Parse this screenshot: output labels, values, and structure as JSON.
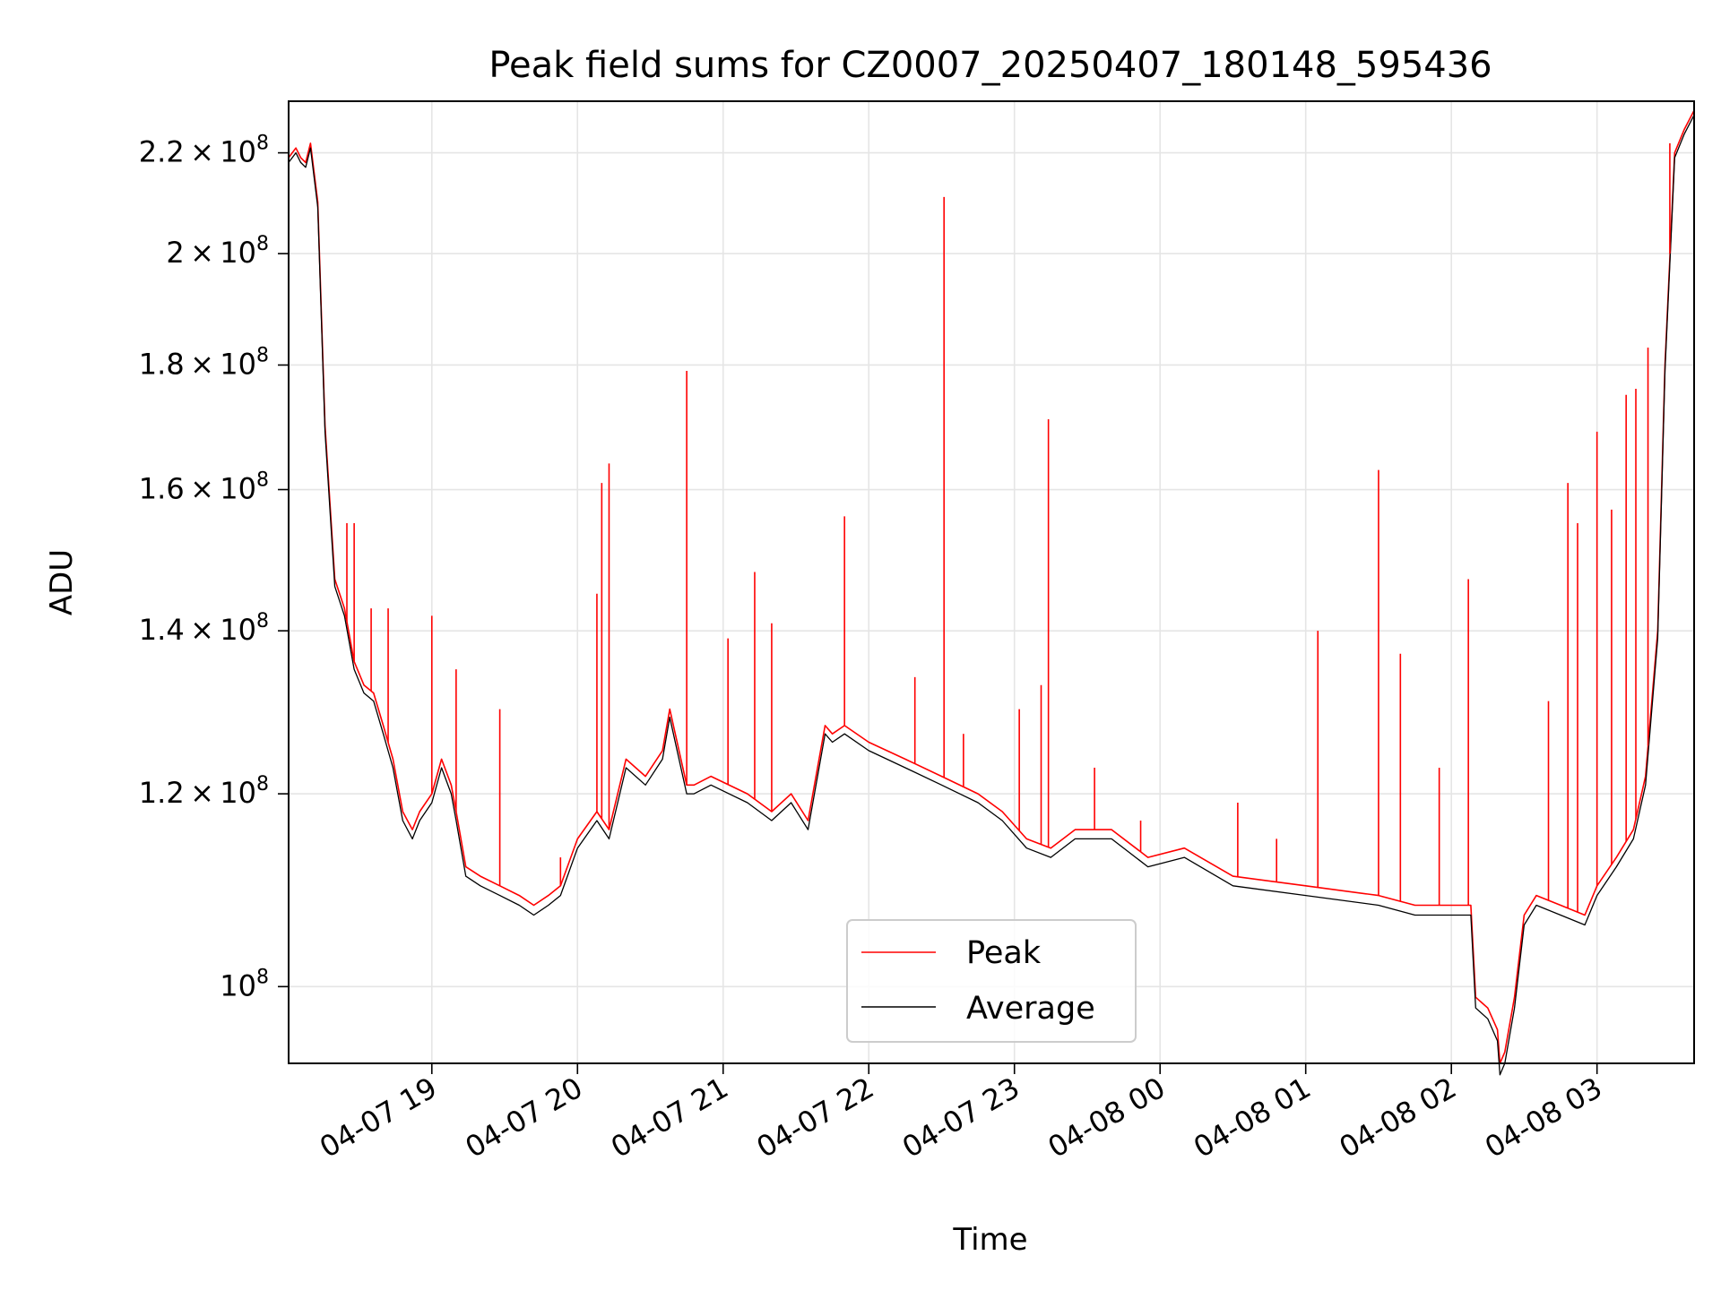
{
  "chart_data": {
    "type": "line",
    "title": "Peak field sums for CZ0007_20250407_180148_595436",
    "xlabel": "Time",
    "ylabel": "ADU",
    "x_range": [
      "2025-04-07 18:01",
      "2025-04-08 03:40"
    ],
    "ylim": [
      93000000,
      231000000
    ],
    "yscale": "log",
    "grid": true,
    "legend_position": "lower-center",
    "x_ticks": [
      {
        "label": "04-07 19",
        "value": "2025-04-07 19:00"
      },
      {
        "label": "04-07 20",
        "value": "2025-04-07 20:00"
      },
      {
        "label": "04-07 21",
        "value": "2025-04-07 21:00"
      },
      {
        "label": "04-07 22",
        "value": "2025-04-07 22:00"
      },
      {
        "label": "04-07 23",
        "value": "2025-04-07 23:00"
      },
      {
        "label": "04-08 00",
        "value": "2025-04-08 00:00"
      },
      {
        "label": "04-08 01",
        "value": "2025-04-08 01:00"
      },
      {
        "label": "04-08 02",
        "value": "2025-04-08 02:00"
      },
      {
        "label": "04-08 03",
        "value": "2025-04-08 03:00"
      }
    ],
    "y_ticks": [
      {
        "value": 100000000,
        "mantissa": "",
        "exponent": "8"
      },
      {
        "value": 120000000,
        "mantissa": "1.2",
        "exponent": "8"
      },
      {
        "value": 140000000,
        "mantissa": "1.4",
        "exponent": "8"
      },
      {
        "value": 160000000,
        "mantissa": "1.6",
        "exponent": "8"
      },
      {
        "value": 180000000,
        "mantissa": "1.8",
        "exponent": "8"
      },
      {
        "value": 200000000,
        "mantissa": "2",
        "exponent": "8"
      },
      {
        "value": 220000000,
        "mantissa": "2.2",
        "exponent": "8"
      }
    ],
    "series": [
      {
        "name": "Peak",
        "color": "#ff0000",
        "x": [
          "2025-04-07 18:01",
          "2025-04-07 18:04",
          "2025-04-07 18:05",
          "2025-04-07 18:06",
          "2025-04-07 18:08",
          "2025-04-07 18:10",
          "2025-04-07 18:13",
          "2025-04-07 18:16",
          "2025-04-07 18:20",
          "2025-04-07 18:24",
          "2025-04-07 18:28",
          "2025-04-07 18:32",
          "2025-04-07 18:36",
          "2025-04-07 18:40",
          "2025-04-07 18:44",
          "2025-04-07 18:48",
          "2025-04-07 18:52",
          "2025-04-07 18:55",
          "2025-04-07 19:00",
          "2025-04-07 19:04",
          "2025-04-07 19:08",
          "2025-04-07 19:10",
          "2025-04-07 19:14",
          "2025-04-07 19:20",
          "2025-04-07 19:28",
          "2025-04-07 19:36",
          "2025-04-07 19:42",
          "2025-04-07 19:48",
          "2025-04-07 19:53",
          "2025-04-07 20:00",
          "2025-04-07 20:08",
          "2025-04-07 20:13",
          "2025-04-07 20:20",
          "2025-04-07 20:28",
          "2025-04-07 20:35",
          "2025-04-07 20:38",
          "2025-04-07 20:45",
          "2025-04-07 20:48",
          "2025-04-07 20:55",
          "2025-04-07 21:10",
          "2025-04-07 21:20",
          "2025-04-07 21:28",
          "2025-04-07 21:35",
          "2025-04-07 21:42",
          "2025-04-07 21:45",
          "2025-04-07 21:50",
          "2025-04-07 22:00",
          "2025-04-07 22:15",
          "2025-04-07 22:30",
          "2025-04-07 22:45",
          "2025-04-07 22:55",
          "2025-04-07 23:05",
          "2025-04-07 23:15",
          "2025-04-07 23:25",
          "2025-04-07 23:40",
          "2025-04-07 23:55",
          "2025-04-08 00:10",
          "2025-04-08 00:30",
          "2025-04-08 01:00",
          "2025-04-08 01:30",
          "2025-04-08 01:45",
          "2025-04-08 02:00",
          "2025-04-08 02:08",
          "2025-04-08 02:10",
          "2025-04-08 02:15",
          "2025-04-08 02:19",
          "2025-04-08 02:20",
          "2025-04-08 02:22",
          "2025-04-08 02:26",
          "2025-04-08 02:30",
          "2025-04-08 02:35",
          "2025-04-08 02:45",
          "2025-04-08 02:55",
          "2025-04-08 03:00",
          "2025-04-08 03:08",
          "2025-04-08 03:15",
          "2025-04-08 03:20",
          "2025-04-08 03:25",
          "2025-04-08 03:28",
          "2025-04-08 03:32",
          "2025-04-08 03:36",
          "2025-04-08 03:40"
        ],
        "values": [
          219,
          221,
          220,
          219,
          218,
          222,
          210,
          170,
          147,
          143,
          136,
          133,
          132,
          128,
          124,
          118,
          116,
          118,
          120,
          124,
          121,
          118,
          112,
          111,
          110,
          109,
          108,
          109,
          110,
          115,
          118,
          116,
          124,
          122,
          125,
          130,
          121,
          121,
          122,
          120,
          118,
          120,
          117,
          128,
          127,
          128,
          126,
          124,
          122,
          120,
          118,
          115,
          114,
          116,
          116,
          113,
          114,
          111,
          110,
          109,
          108,
          108,
          108,
          99,
          98,
          96,
          93,
          94,
          99,
          107,
          109,
          108,
          107,
          110,
          113,
          116,
          122,
          140,
          180,
          220,
          225,
          229
        ],
        "spikes": [
          {
            "x": "2025-04-07 18:25",
            "value": 155000000
          },
          {
            "x": "2025-04-07 18:28",
            "value": 155000000
          },
          {
            "x": "2025-04-07 18:35",
            "value": 143000000
          },
          {
            "x": "2025-04-07 18:42",
            "value": 143000000
          },
          {
            "x": "2025-04-07 19:00",
            "value": 142000000
          },
          {
            "x": "2025-04-07 19:10",
            "value": 135000000
          },
          {
            "x": "2025-04-07 19:28",
            "value": 130000000
          },
          {
            "x": "2025-04-07 19:53",
            "value": 113000000
          },
          {
            "x": "2025-04-07 20:08",
            "value": 145000000
          },
          {
            "x": "2025-04-07 20:10",
            "value": 161000000
          },
          {
            "x": "2025-04-07 20:13",
            "value": 164000000
          },
          {
            "x": "2025-04-07 20:45",
            "value": 179000000
          },
          {
            "x": "2025-04-07 21:02",
            "value": 139000000
          },
          {
            "x": "2025-04-07 21:13",
            "value": 148000000
          },
          {
            "x": "2025-04-07 21:20",
            "value": 141000000
          },
          {
            "x": "2025-04-07 21:50",
            "value": 156000000
          },
          {
            "x": "2025-04-07 22:19",
            "value": 134000000
          },
          {
            "x": "2025-04-07 22:31",
            "value": 211000000
          },
          {
            "x": "2025-04-07 22:39",
            "value": 127000000
          },
          {
            "x": "2025-04-07 23:02",
            "value": 130000000
          },
          {
            "x": "2025-04-07 23:11",
            "value": 133000000
          },
          {
            "x": "2025-04-07 23:14",
            "value": 171000000
          },
          {
            "x": "2025-04-07 23:33",
            "value": 123000000
          },
          {
            "x": "2025-04-07 23:52",
            "value": 117000000
          },
          {
            "x": "2025-04-08 00:32",
            "value": 119000000
          },
          {
            "x": "2025-04-08 00:48",
            "value": 115000000
          },
          {
            "x": "2025-04-08 01:05",
            "value": 140000000
          },
          {
            "x": "2025-04-08 01:30",
            "value": 163000000
          },
          {
            "x": "2025-04-08 01:39",
            "value": 137000000
          },
          {
            "x": "2025-04-08 01:55",
            "value": 123000000
          },
          {
            "x": "2025-04-08 02:07",
            "value": 147000000
          },
          {
            "x": "2025-04-08 02:40",
            "value": 131000000
          },
          {
            "x": "2025-04-08 02:48",
            "value": 161000000
          },
          {
            "x": "2025-04-08 02:52",
            "value": 155000000
          },
          {
            "x": "2025-04-08 03:00",
            "value": 169000000
          },
          {
            "x": "2025-04-08 03:06",
            "value": 157000000
          },
          {
            "x": "2025-04-08 03:12",
            "value": 175000000
          },
          {
            "x": "2025-04-08 03:16",
            "value": 176000000
          },
          {
            "x": "2025-04-08 03:21",
            "value": 183000000
          },
          {
            "x": "2025-04-08 03:30",
            "value": 222000000
          }
        ]
      },
      {
        "name": "Average",
        "color": "#000000",
        "x": [
          "2025-04-07 18:01",
          "2025-04-07 18:04",
          "2025-04-07 18:05",
          "2025-04-07 18:06",
          "2025-04-07 18:08",
          "2025-04-07 18:10",
          "2025-04-07 18:13",
          "2025-04-07 18:16",
          "2025-04-07 18:20",
          "2025-04-07 18:24",
          "2025-04-07 18:28",
          "2025-04-07 18:32",
          "2025-04-07 18:36",
          "2025-04-07 18:40",
          "2025-04-07 18:44",
          "2025-04-07 18:48",
          "2025-04-07 18:52",
          "2025-04-07 18:55",
          "2025-04-07 19:00",
          "2025-04-07 19:04",
          "2025-04-07 19:08",
          "2025-04-07 19:10",
          "2025-04-07 19:14",
          "2025-04-07 19:20",
          "2025-04-07 19:28",
          "2025-04-07 19:36",
          "2025-04-07 19:42",
          "2025-04-07 19:48",
          "2025-04-07 19:53",
          "2025-04-07 20:00",
          "2025-04-07 20:08",
          "2025-04-07 20:13",
          "2025-04-07 20:20",
          "2025-04-07 20:28",
          "2025-04-07 20:35",
          "2025-04-07 20:38",
          "2025-04-07 20:45",
          "2025-04-07 20:48",
          "2025-04-07 20:55",
          "2025-04-07 21:10",
          "2025-04-07 21:20",
          "2025-04-07 21:28",
          "2025-04-07 21:35",
          "2025-04-07 21:42",
          "2025-04-07 21:45",
          "2025-04-07 21:50",
          "2025-04-07 22:00",
          "2025-04-07 22:15",
          "2025-04-07 22:30",
          "2025-04-07 22:45",
          "2025-04-07 22:55",
          "2025-04-07 23:05",
          "2025-04-07 23:15",
          "2025-04-07 23:25",
          "2025-04-07 23:40",
          "2025-04-07 23:55",
          "2025-04-08 00:10",
          "2025-04-08 00:30",
          "2025-04-08 01:00",
          "2025-04-08 01:30",
          "2025-04-08 01:45",
          "2025-04-08 02:00",
          "2025-04-08 02:08",
          "2025-04-08 02:10",
          "2025-04-08 02:15",
          "2025-04-08 02:19",
          "2025-04-08 02:20",
          "2025-04-08 02:22",
          "2025-04-08 02:26",
          "2025-04-08 02:30",
          "2025-04-08 02:35",
          "2025-04-08 02:45",
          "2025-04-08 02:55",
          "2025-04-08 03:00",
          "2025-04-08 03:08",
          "2025-04-08 03:15",
          "2025-04-08 03:20",
          "2025-04-08 03:25",
          "2025-04-08 03:28",
          "2025-04-08 03:32",
          "2025-04-08 03:36",
          "2025-04-08 03:40"
        ],
        "values": [
          218,
          220,
          219,
          218,
          217,
          221,
          209,
          169,
          146,
          142,
          135,
          132,
          131,
          127,
          123,
          117,
          115,
          117,
          119,
          123,
          120,
          117,
          111,
          110,
          109,
          108,
          107,
          108,
          109,
          114,
          117,
          115,
          123,
          121,
          124,
          129,
          120,
          120,
          121,
          119,
          117,
          119,
          116,
          127,
          126,
          127,
          125,
          123,
          121,
          119,
          117,
          114,
          113,
          115,
          115,
          112,
          113,
          110,
          109,
          108,
          107,
          107,
          107,
          98,
          97,
          95,
          92,
          93,
          98,
          106,
          108,
          107,
          106,
          109,
          112,
          115,
          121,
          139,
          179,
          219,
          224,
          228
        ]
      }
    ]
  }
}
